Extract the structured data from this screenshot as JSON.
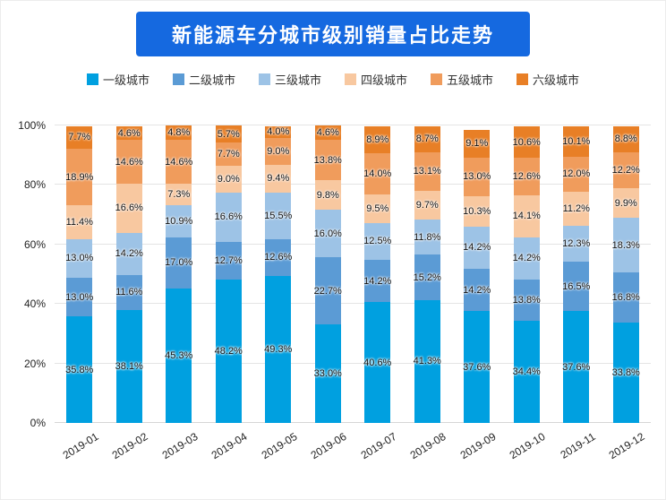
{
  "title": "新能源车分城市级别销量占比走势",
  "colors": {
    "title_bg": "#1569e0",
    "title_text": "#ffffff"
  },
  "chart_data": {
    "type": "bar",
    "stacked": true,
    "title": "新能源车分城市级别销量占比走势",
    "categories": [
      "2019-01",
      "2019-02",
      "2019-03",
      "2019-04",
      "2019-05",
      "2019-06",
      "2019-07",
      "2019-08",
      "2019-09",
      "2019-10",
      "2019-11",
      "2019-12"
    ],
    "series": [
      {
        "name": "一级城市",
        "color": "#00a0e0",
        "values": [
          35.8,
          38.1,
          45.3,
          48.2,
          49.3,
          33.0,
          40.6,
          41.3,
          37.6,
          34.4,
          37.6,
          33.8
        ]
      },
      {
        "name": "二级城市",
        "color": "#5b9bd5",
        "values": [
          13.0,
          11.6,
          17.0,
          12.7,
          12.6,
          22.7,
          14.2,
          15.2,
          14.2,
          13.8,
          16.5,
          16.8
        ]
      },
      {
        "name": "三级城市",
        "color": "#9dc3e6",
        "values": [
          13.0,
          14.2,
          10.9,
          16.6,
          15.5,
          16.0,
          12.5,
          11.8,
          14.2,
          14.2,
          12.3,
          18.3
        ]
      },
      {
        "name": "四级城市",
        "color": "#f8c8a0",
        "values": [
          11.4,
          16.6,
          7.3,
          9.0,
          9.4,
          9.8,
          9.5,
          9.7,
          10.3,
          14.1,
          11.2,
          9.9
        ]
      },
      {
        "name": "五级城市",
        "color": "#f09c5c",
        "values": [
          18.9,
          14.6,
          14.6,
          7.7,
          9.0,
          13.8,
          14.0,
          13.1,
          13.0,
          12.6,
          12.0,
          12.2
        ]
      },
      {
        "name": "六级城市",
        "color": "#e87f26",
        "values": [
          7.7,
          4.6,
          4.8,
          5.7,
          4.0,
          4.6,
          8.9,
          8.7,
          9.1,
          10.6,
          10.1,
          8.8
        ]
      }
    ],
    "ylim": [
      0,
      100
    ],
    "yticks": [
      0,
      20,
      40,
      60,
      80,
      100
    ],
    "ytick_labels": [
      "0%",
      "20%",
      "40%",
      "60%",
      "80%",
      "100%"
    ],
    "grid": true,
    "legend_position": "top",
    "value_suffix": "%"
  }
}
